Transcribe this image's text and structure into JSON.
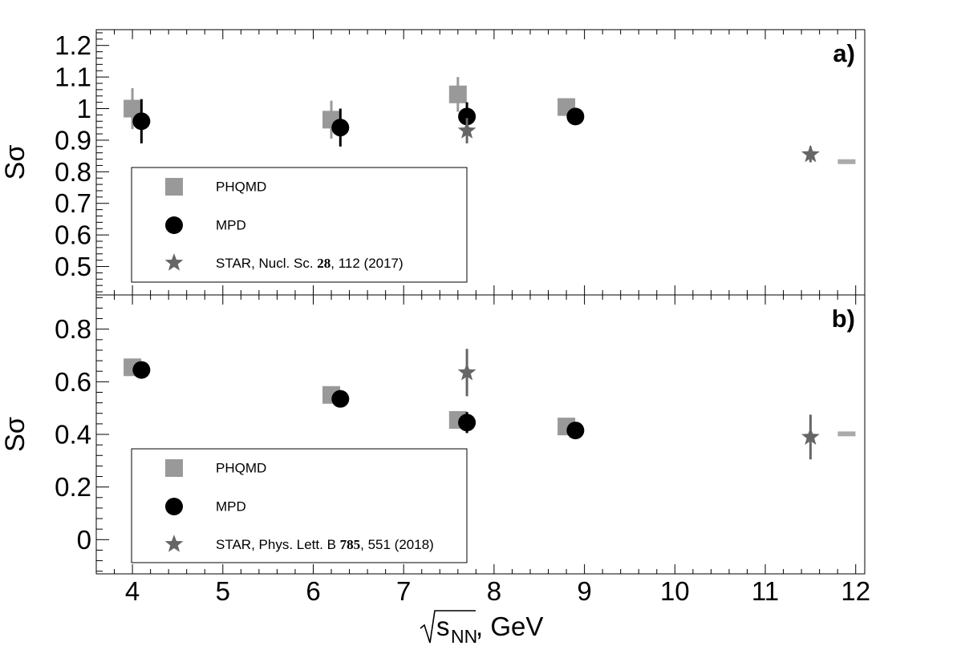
{
  "chart_data": [
    {
      "type": "scatter",
      "panel_label": "a)",
      "ylabel": "Sσ",
      "ylim": [
        0.41,
        1.25
      ],
      "yticks": [
        "0.5",
        "0.6",
        "0.7",
        "0.8",
        "0.9",
        "1",
        "1.1",
        "1.2"
      ],
      "ytick_values": [
        0.5,
        0.6,
        0.7,
        0.8,
        0.9,
        1.0,
        1.1,
        1.2
      ],
      "xlim": [
        3.6,
        12.1
      ],
      "legend": {
        "position": "bottom-left",
        "entries": [
          {
            "marker": "square",
            "label": "PHQMD"
          },
          {
            "marker": "circle",
            "label": "MPD"
          },
          {
            "marker": "star",
            "label_pre": "STAR, Nucl. Sc. ",
            "label_bold": "28",
            "label_post": ", 112 (2017)"
          }
        ]
      },
      "series": [
        {
          "name": "PHQMD",
          "marker": "square",
          "color": "#999999",
          "points": [
            {
              "x": 4.0,
              "y": 1.0,
              "err": 0.065
            },
            {
              "x": 6.2,
              "y": 0.965,
              "err": 0.06
            },
            {
              "x": 7.6,
              "y": 1.045,
              "err": 0.055
            },
            {
              "x": 8.8,
              "y": 1.005,
              "err": 0.0
            }
          ]
        },
        {
          "name": "MPD",
          "marker": "circle",
          "color": "#000000",
          "points": [
            {
              "x": 4.1,
              "y": 0.96,
              "err": 0.07
            },
            {
              "x": 6.3,
              "y": 0.94,
              "err": 0.06
            },
            {
              "x": 7.7,
              "y": 0.975,
              "err": 0.045
            },
            {
              "x": 8.9,
              "y": 0.975,
              "err": 0.0
            }
          ]
        },
        {
          "name": "STAR, Nucl. Sc. 28, 112 (2017)",
          "marker": "star",
          "color": "#666666",
          "points": [
            {
              "x": 7.7,
              "y": 0.93,
              "err": 0.04
            },
            {
              "x": 11.5,
              "y": 0.855,
              "err": 0.025
            }
          ]
        },
        {
          "name": "",
          "marker": "band",
          "color": "#aaaaaa",
          "points": [
            {
              "x": 11.9,
              "y": 0.832,
              "err": 0.0
            }
          ]
        }
      ]
    },
    {
      "type": "scatter",
      "panel_label": "b)",
      "ylabel": "Sσ",
      "ylim": [
        -0.13,
        0.93
      ],
      "yticks": [
        "0",
        "0.2",
        "0.4",
        "0.6",
        "0.8"
      ],
      "ytick_values": [
        0.0,
        0.2,
        0.4,
        0.6,
        0.8
      ],
      "xlim": [
        3.6,
        12.1
      ],
      "xticks": [
        "4",
        "5",
        "6",
        "7",
        "8",
        "9",
        "10",
        "11",
        "12"
      ],
      "xtick_values": [
        4,
        5,
        6,
        7,
        8,
        9,
        10,
        11,
        12
      ],
      "xlabel": {
        "sqrt_sym": "√",
        "main": "s",
        "sub": "NN",
        "suffix": ", GeV"
      },
      "legend": {
        "position": "bottom-left",
        "entries": [
          {
            "marker": "square",
            "label": "PHQMD"
          },
          {
            "marker": "circle",
            "label": "MPD"
          },
          {
            "marker": "star",
            "label_pre": "STAR, Phys. Lett. B ",
            "label_bold": "785",
            "label_post": ", 551 (2018)"
          }
        ]
      },
      "series": [
        {
          "name": "PHQMD",
          "marker": "square",
          "color": "#999999",
          "points": [
            {
              "x": 4.0,
              "y": 0.655,
              "err": 0.0
            },
            {
              "x": 6.2,
              "y": 0.55,
              "err": 0.0
            },
            {
              "x": 7.6,
              "y": 0.455,
              "err": 0.015
            },
            {
              "x": 8.8,
              "y": 0.43,
              "err": 0.0
            }
          ]
        },
        {
          "name": "MPD",
          "marker": "circle",
          "color": "#000000",
          "points": [
            {
              "x": 4.1,
              "y": 0.645,
              "err": 0.0
            },
            {
              "x": 6.3,
              "y": 0.535,
              "err": 0.0
            },
            {
              "x": 7.7,
              "y": 0.445,
              "err": 0.04
            },
            {
              "x": 8.9,
              "y": 0.415,
              "err": 0.0
            }
          ]
        },
        {
          "name": "STAR, Phys. Lett. B 785, 551 (2018)",
          "marker": "star",
          "color": "#666666",
          "points": [
            {
              "x": 7.7,
              "y": 0.635,
              "err": 0.09
            },
            {
              "x": 11.5,
              "y": 0.39,
              "err": 0.085
            }
          ]
        },
        {
          "name": "",
          "marker": "band",
          "color": "#aaaaaa",
          "points": [
            {
              "x": 11.9,
              "y": 0.402,
              "err": 0.0
            }
          ]
        }
      ]
    }
  ]
}
